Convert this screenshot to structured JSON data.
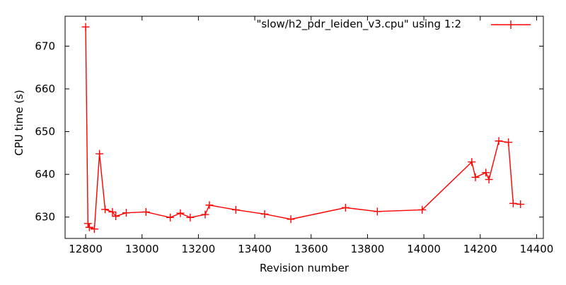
{
  "chart_data": {
    "type": "line",
    "title": "",
    "xlabel": "Revision number",
    "ylabel": "CPU time (s)",
    "grid": false,
    "legend_position": "top-right-inside",
    "background_color": "#ffffff",
    "axis_color": "#000000",
    "xlim": [
      12727,
      14424
    ],
    "ylim": [
      625,
      677
    ],
    "x_ticks": [
      12800,
      13000,
      13200,
      13400,
      13600,
      13800,
      14000,
      14200,
      14400
    ],
    "y_ticks": [
      630,
      640,
      650,
      660,
      670
    ],
    "series": [
      {
        "name": "\"slow/h2_pdr_leiden_v3.cpu\" using 1:2",
        "color": "#ff0000",
        "marker": "plus",
        "points": [
          [
            12800,
            674.5
          ],
          [
            12808,
            628.5
          ],
          [
            12813,
            627.6
          ],
          [
            12831,
            627.2
          ],
          [
            12849,
            644.8
          ],
          [
            12869,
            631.8
          ],
          [
            12895,
            631.2
          ],
          [
            12907,
            630.2
          ],
          [
            12944,
            631.0
          ],
          [
            13014,
            631.2
          ],
          [
            13100,
            629.9
          ],
          [
            13136,
            630.9
          ],
          [
            13171,
            629.9
          ],
          [
            13224,
            630.6
          ],
          [
            13239,
            632.8
          ],
          [
            13333,
            631.7
          ],
          [
            13435,
            630.7
          ],
          [
            13528,
            629.5
          ],
          [
            13722,
            632.2
          ],
          [
            13835,
            631.3
          ],
          [
            13994,
            631.7
          ],
          [
            14170,
            642.9
          ],
          [
            14183,
            639.3
          ],
          [
            14220,
            640.4
          ],
          [
            14231,
            638.8
          ],
          [
            14266,
            647.8
          ],
          [
            14300,
            647.5
          ],
          [
            14317,
            633.2
          ],
          [
            14343,
            633.0
          ]
        ]
      }
    ]
  }
}
